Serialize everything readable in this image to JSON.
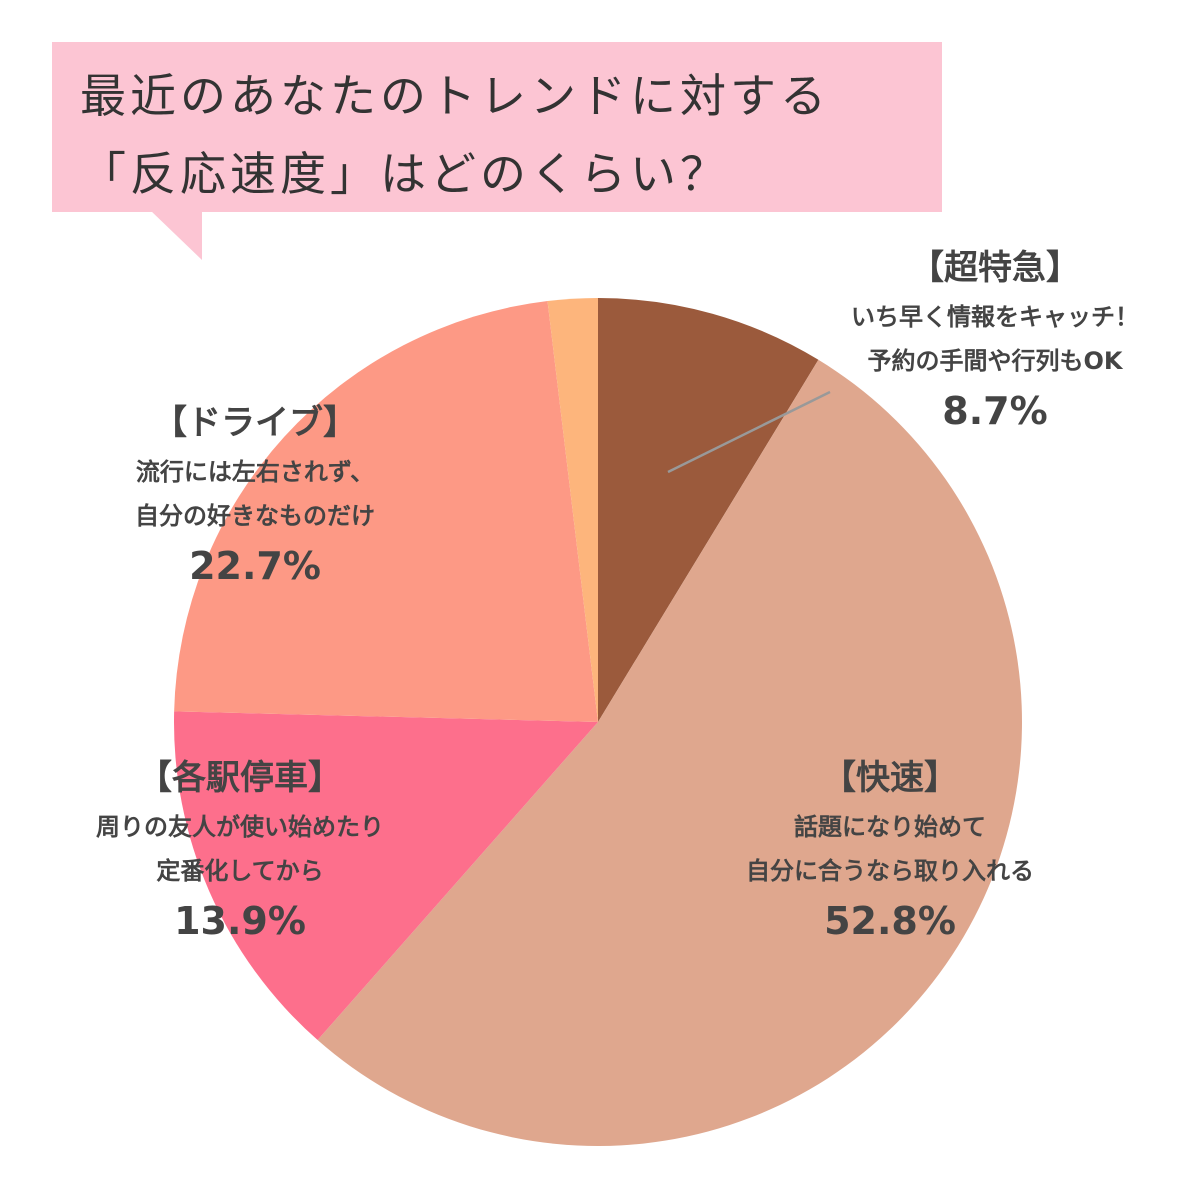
{
  "title": {
    "line1": "最近のあなたのトレンドに対する",
    "line2": "「反応速度」はどのくらい？"
  },
  "chart_data": {
    "type": "pie",
    "start": "12 o'clock",
    "direction": "clockwise",
    "slices": [
      {
        "name": "【超特急】",
        "desc1": "いち早く情報をキャッチ！",
        "desc2": "予約の手間や行列もOK",
        "value": 8.7,
        "label": "8.7%",
        "color": "#9b5a3c"
      },
      {
        "name": "【快速】",
        "desc1": "話題になり始めて",
        "desc2": "自分に合うなら取り入れる",
        "value": 52.8,
        "label": "52.8%",
        "color": "#dfa78e"
      },
      {
        "name": "【各駅停車】",
        "desc1": "周りの友人が使い始めたり",
        "desc2": "定番化してから",
        "value": 13.9,
        "label": "13.9%",
        "color": "#fd6f8c"
      },
      {
        "name": "【ドライブ】",
        "desc1": "流行には左右されず、",
        "desc2": "自分の好きなものだけ",
        "value": 22.7,
        "label": "22.7%",
        "color": "#fd9985"
      },
      {
        "name": "",
        "desc1": "",
        "desc2": "",
        "value": 1.9,
        "label": "",
        "color": "#fdb57c"
      }
    ],
    "leader_line_color": "#999999"
  }
}
